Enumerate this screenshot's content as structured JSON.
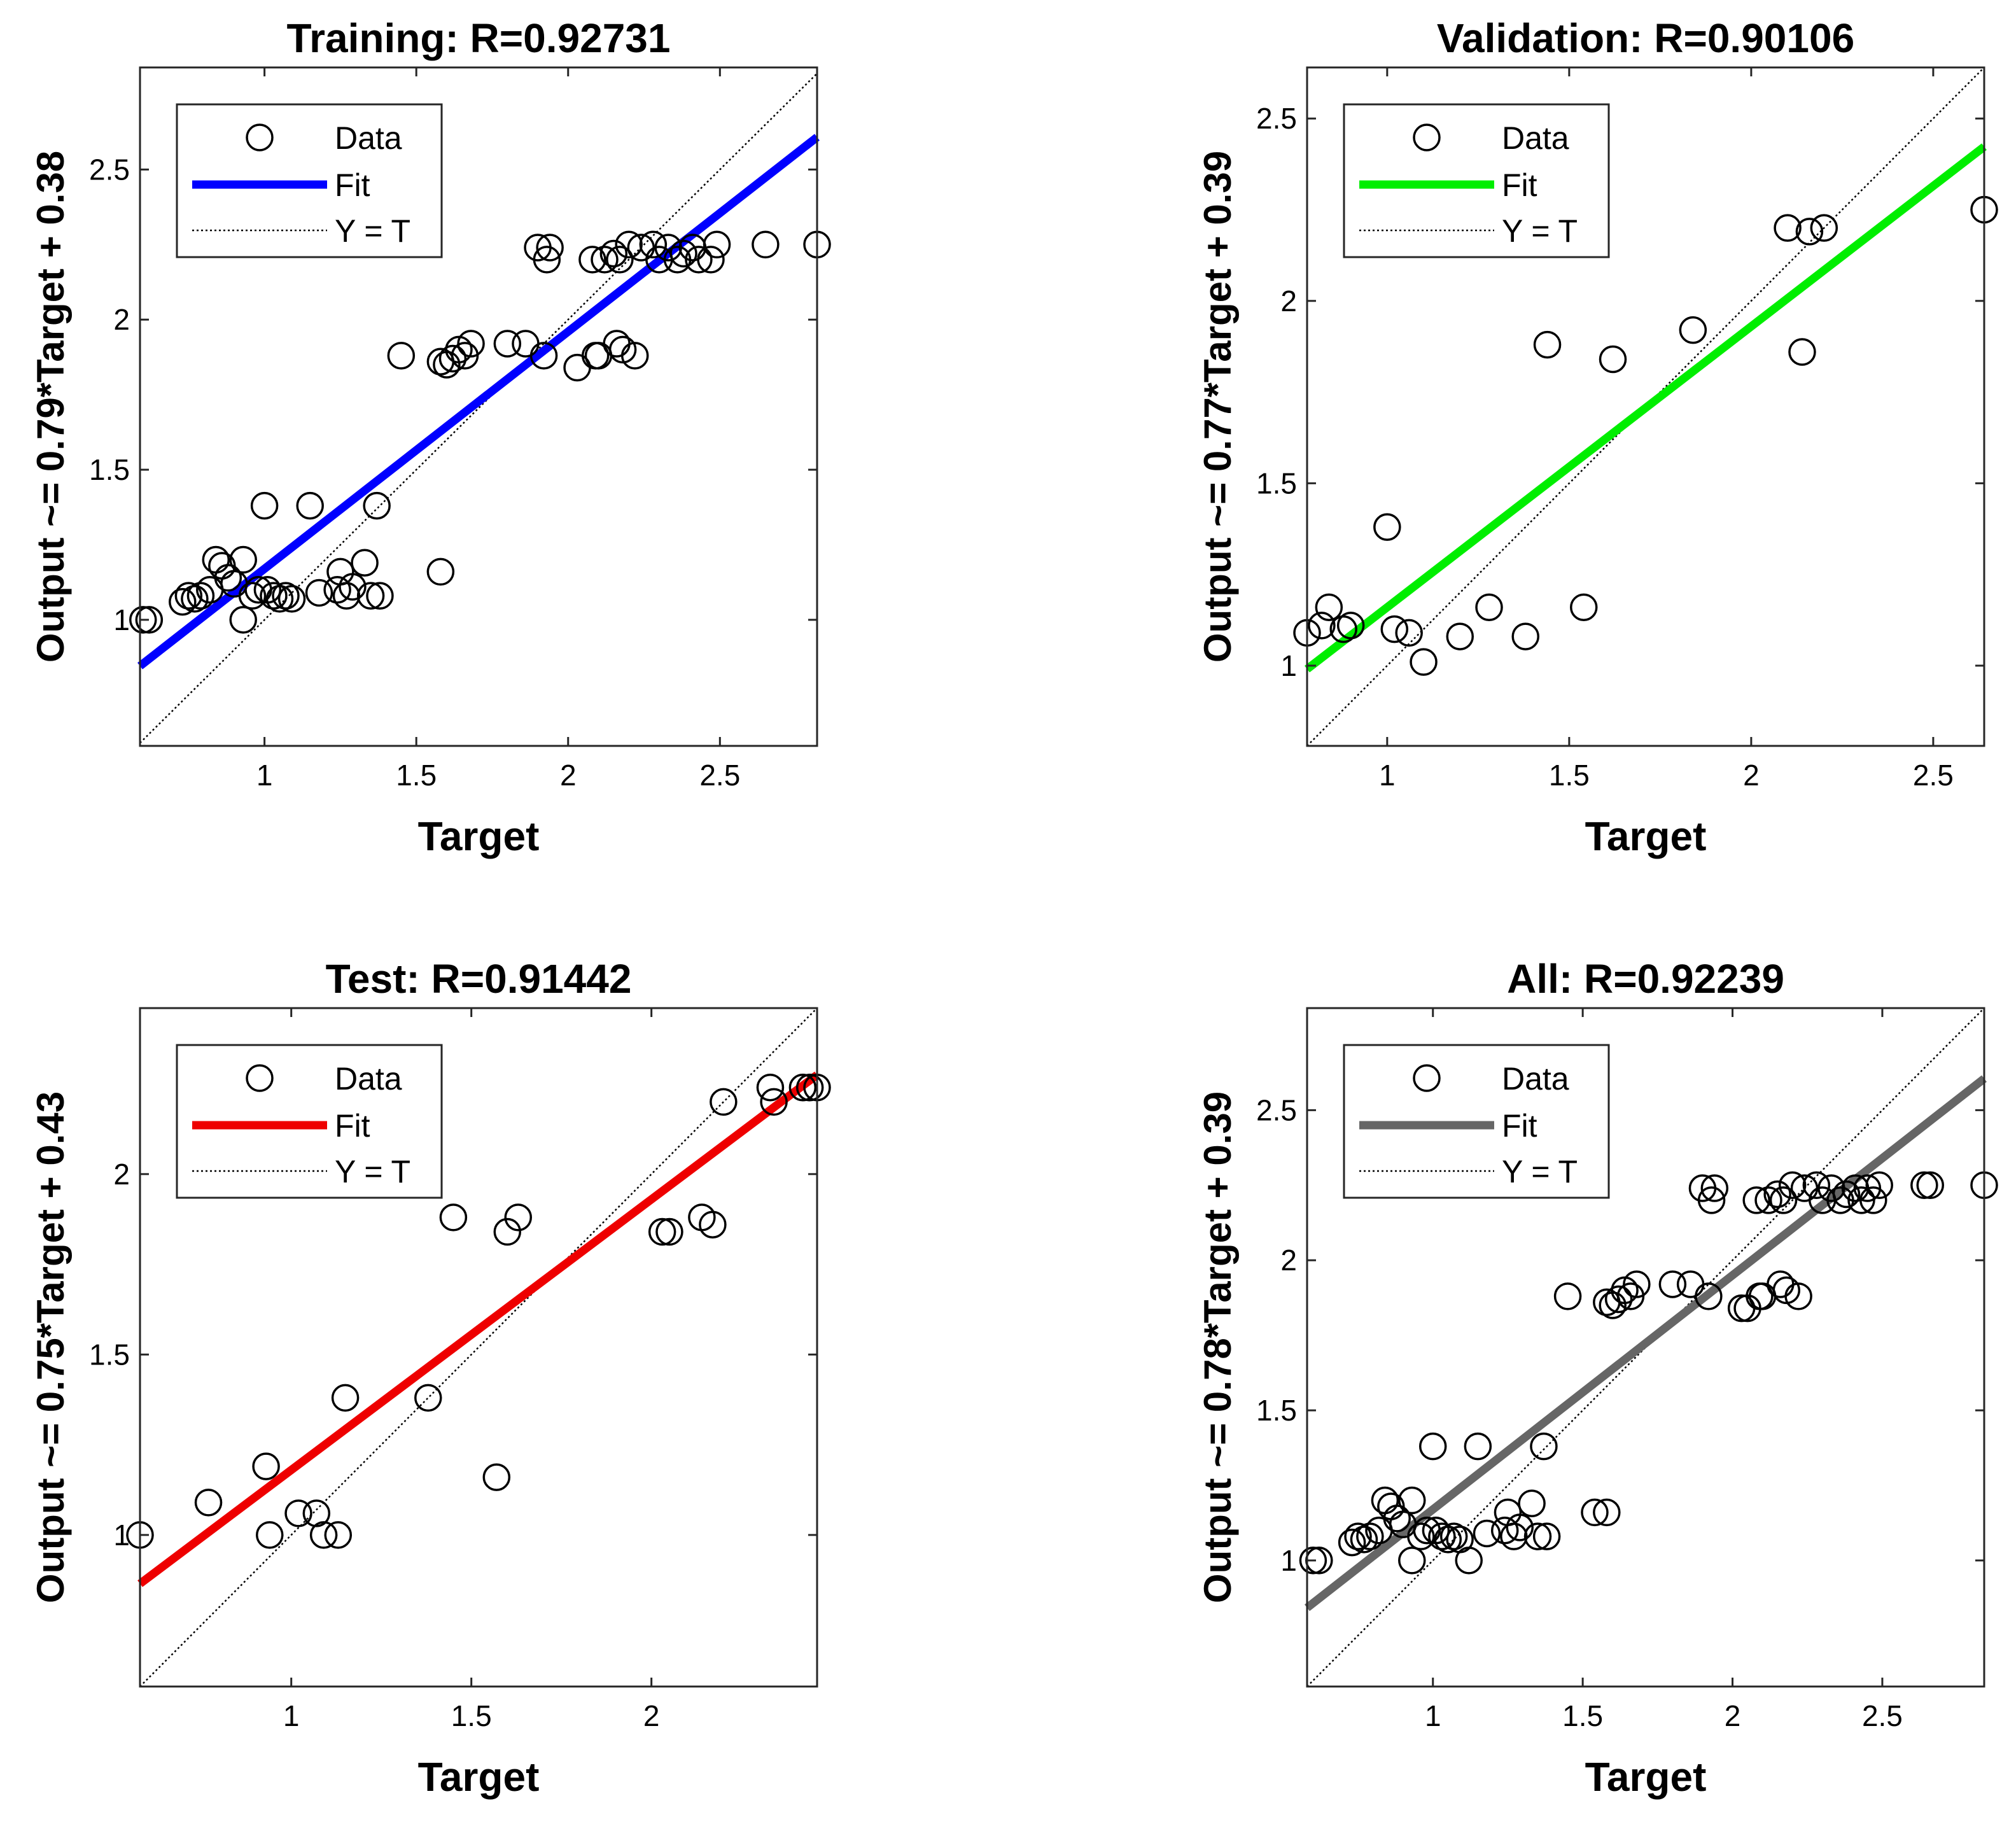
{
  "chart_data": [
    {
      "type": "scatter",
      "panel": "training",
      "title": "Training: R=0.92731",
      "xlabel": "Target",
      "ylabel": "Output ~= 0.79*Target + 0.38",
      "xlim": [
        0.59,
        2.82
      ],
      "ylim": [
        0.58,
        2.84
      ],
      "xticks": [
        1,
        1.5,
        2,
        2.5
      ],
      "xtick_labels": [
        "1",
        "1.5",
        "2",
        "2.5"
      ],
      "yticks": [
        1,
        1.5,
        2,
        2.5
      ],
      "ytick_labels": [
        "1",
        "1.5",
        "2",
        "2.5"
      ],
      "fit": {
        "slope": 0.79,
        "intercept": 0.38,
        "color": "#0000ff"
      },
      "legend": {
        "position": "top-left",
        "entries": [
          "Data",
          "Fit",
          "Y = T"
        ]
      },
      "points": [
        [
          0.6,
          1.0
        ],
        [
          0.62,
          1.0
        ],
        [
          0.73,
          1.06
        ],
        [
          0.75,
          1.08
        ],
        [
          0.77,
          1.07
        ],
        [
          0.79,
          1.08
        ],
        [
          0.82,
          1.1
        ],
        [
          0.84,
          1.2
        ],
        [
          0.86,
          1.18
        ],
        [
          0.88,
          1.14
        ],
        [
          0.9,
          1.12
        ],
        [
          0.93,
          1.2
        ],
        [
          0.93,
          1.0
        ],
        [
          0.96,
          1.08
        ],
        [
          0.98,
          1.1
        ],
        [
          1.0,
          1.38
        ],
        [
          1.01,
          1.1
        ],
        [
          1.03,
          1.08
        ],
        [
          1.05,
          1.07
        ],
        [
          1.07,
          1.08
        ],
        [
          1.09,
          1.07
        ],
        [
          1.15,
          1.38
        ],
        [
          1.18,
          1.09
        ],
        [
          1.24,
          1.1
        ],
        [
          1.25,
          1.16
        ],
        [
          1.27,
          1.08
        ],
        [
          1.29,
          1.11
        ],
        [
          1.33,
          1.19
        ],
        [
          1.35,
          1.08
        ],
        [
          1.37,
          1.38
        ],
        [
          1.38,
          1.08
        ],
        [
          1.45,
          1.88
        ],
        [
          1.58,
          1.16
        ],
        [
          1.58,
          1.86
        ],
        [
          1.6,
          1.85
        ],
        [
          1.62,
          1.87
        ],
        [
          1.64,
          1.9
        ],
        [
          1.66,
          1.88
        ],
        [
          1.68,
          1.92
        ],
        [
          1.8,
          1.92
        ],
        [
          1.86,
          1.92
        ],
        [
          1.9,
          2.24
        ],
        [
          1.92,
          1.88
        ],
        [
          1.93,
          2.2
        ],
        [
          1.94,
          2.24
        ],
        [
          2.03,
          1.84
        ],
        [
          2.08,
          2.2
        ],
        [
          2.09,
          1.88
        ],
        [
          2.1,
          1.88
        ],
        [
          2.12,
          2.2
        ],
        [
          2.15,
          2.22
        ],
        [
          2.16,
          1.92
        ],
        [
          2.17,
          2.2
        ],
        [
          2.18,
          1.9
        ],
        [
          2.2,
          2.25
        ],
        [
          2.22,
          1.88
        ],
        [
          2.24,
          2.24
        ],
        [
          2.28,
          2.25
        ],
        [
          2.3,
          2.2
        ],
        [
          2.33,
          2.24
        ],
        [
          2.36,
          2.2
        ],
        [
          2.38,
          2.22
        ],
        [
          2.41,
          2.24
        ],
        [
          2.43,
          2.2
        ],
        [
          2.47,
          2.2
        ],
        [
          2.49,
          2.25
        ],
        [
          2.65,
          2.25
        ],
        [
          2.82,
          2.25
        ]
      ]
    },
    {
      "type": "scatter",
      "panel": "validation",
      "title": "Validation: R=0.90106",
      "xlabel": "Target",
      "ylabel": "Output ~= 0.77*Target + 0.39",
      "xlim": [
        0.78,
        2.64
      ],
      "ylim": [
        0.78,
        2.64
      ],
      "xticks": [
        1,
        1.5,
        2,
        2.5
      ],
      "xtick_labels": [
        "1",
        "1.5",
        "2",
        "2.5"
      ],
      "yticks": [
        1,
        1.5,
        2,
        2.5
      ],
      "ytick_labels": [
        "1",
        "1.5",
        "2",
        "2.5"
      ],
      "fit": {
        "slope": 0.77,
        "intercept": 0.39,
        "color": "#00ee00"
      },
      "legend": {
        "position": "top-left",
        "entries": [
          "Data",
          "Fit",
          "Y = T"
        ]
      },
      "points": [
        [
          0.78,
          1.09
        ],
        [
          0.82,
          1.11
        ],
        [
          0.84,
          1.16
        ],
        [
          0.88,
          1.1
        ],
        [
          0.9,
          1.11
        ],
        [
          1.0,
          1.38
        ],
        [
          1.02,
          1.1
        ],
        [
          1.06,
          1.09
        ],
        [
          1.1,
          1.01
        ],
        [
          1.2,
          1.08
        ],
        [
          1.28,
          1.16
        ],
        [
          1.38,
          1.08
        ],
        [
          1.44,
          1.88
        ],
        [
          1.54,
          1.16
        ],
        [
          1.62,
          1.84
        ],
        [
          1.84,
          1.92
        ],
        [
          2.1,
          2.2
        ],
        [
          2.14,
          1.86
        ],
        [
          2.16,
          2.19
        ],
        [
          2.2,
          2.2
        ],
        [
          2.64,
          2.25
        ]
      ]
    },
    {
      "type": "scatter",
      "panel": "test",
      "title": "Test: R=0.91442",
      "xlabel": "Target",
      "ylabel": "Output ~= 0.75*Target + 0.43",
      "xlim": [
        0.58,
        2.46
      ],
      "ylim": [
        0.58,
        2.46
      ],
      "xticks": [
        1,
        1.5,
        2
      ],
      "xtick_labels": [
        "1",
        "1.5",
        "2"
      ],
      "yticks": [
        1,
        1.5,
        2
      ],
      "ytick_labels": [
        "1",
        "1.5",
        "2"
      ],
      "fit": {
        "slope": 0.75,
        "intercept": 0.43,
        "color": "#ee0000"
      },
      "legend": {
        "position": "top-left",
        "entries": [
          "Data",
          "Fit",
          "Y = T"
        ]
      },
      "points": [
        [
          0.58,
          1.0
        ],
        [
          0.77,
          1.09
        ],
        [
          0.93,
          1.19
        ],
        [
          0.94,
          1.0
        ],
        [
          1.02,
          1.06
        ],
        [
          1.07,
          1.06
        ],
        [
          1.09,
          1.0
        ],
        [
          1.13,
          1.0
        ],
        [
          1.15,
          1.38
        ],
        [
          1.38,
          1.38
        ],
        [
          1.45,
          1.88
        ],
        [
          1.57,
          1.16
        ],
        [
          1.6,
          1.84
        ],
        [
          1.63,
          1.88
        ],
        [
          2.03,
          1.84
        ],
        [
          2.05,
          1.84
        ],
        [
          2.14,
          1.88
        ],
        [
          2.17,
          1.86
        ],
        [
          2.2,
          2.2
        ],
        [
          2.33,
          2.24
        ],
        [
          2.34,
          2.2
        ],
        [
          2.42,
          2.24
        ],
        [
          2.44,
          2.24
        ],
        [
          2.46,
          2.24
        ]
      ]
    },
    {
      "type": "scatter",
      "panel": "all",
      "title": "All: R=0.92239",
      "xlabel": "Target",
      "ylabel": "Output ~= 0.78*Target + 0.39",
      "xlim": [
        0.58,
        2.84
      ],
      "ylim": [
        0.58,
        2.84
      ],
      "xticks": [
        1,
        1.5,
        2,
        2.5
      ],
      "xtick_labels": [
        "1",
        "1.5",
        "2",
        "2.5"
      ],
      "yticks": [
        1,
        1.5,
        2,
        2.5
      ],
      "ytick_labels": [
        "1",
        "1.5",
        "2",
        "2.5"
      ],
      "fit": {
        "slope": 0.78,
        "intercept": 0.39,
        "color": "#666666"
      },
      "legend": {
        "position": "top-left",
        "entries": [
          "Data",
          "Fit",
          "Y = T"
        ]
      },
      "points": [
        [
          0.6,
          1.0
        ],
        [
          0.62,
          1.0
        ],
        [
          0.73,
          1.06
        ],
        [
          0.75,
          1.08
        ],
        [
          0.77,
          1.07
        ],
        [
          0.79,
          1.08
        ],
        [
          0.82,
          1.1
        ],
        [
          0.84,
          1.2
        ],
        [
          0.86,
          1.18
        ],
        [
          0.88,
          1.14
        ],
        [
          0.9,
          1.12
        ],
        [
          0.93,
          1.2
        ],
        [
          0.93,
          1.0
        ],
        [
          0.96,
          1.08
        ],
        [
          0.98,
          1.1
        ],
        [
          1.0,
          1.38
        ],
        [
          1.01,
          1.1
        ],
        [
          1.03,
          1.08
        ],
        [
          1.05,
          1.07
        ],
        [
          1.07,
          1.08
        ],
        [
          1.09,
          1.07
        ],
        [
          1.12,
          1.0
        ],
        [
          1.15,
          1.38
        ],
        [
          1.18,
          1.09
        ],
        [
          1.24,
          1.1
        ],
        [
          1.25,
          1.16
        ],
        [
          1.27,
          1.08
        ],
        [
          1.29,
          1.11
        ],
        [
          1.33,
          1.19
        ],
        [
          1.35,
          1.08
        ],
        [
          1.37,
          1.38
        ],
        [
          1.38,
          1.08
        ],
        [
          1.45,
          1.88
        ],
        [
          1.54,
          1.16
        ],
        [
          1.58,
          1.16
        ],
        [
          1.58,
          1.86
        ],
        [
          1.6,
          1.85
        ],
        [
          1.62,
          1.87
        ],
        [
          1.64,
          1.9
        ],
        [
          1.66,
          1.88
        ],
        [
          1.68,
          1.92
        ],
        [
          1.8,
          1.92
        ],
        [
          1.86,
          1.92
        ],
        [
          1.9,
          2.24
        ],
        [
          1.92,
          1.88
        ],
        [
          1.93,
          2.2
        ],
        [
          1.94,
          2.24
        ],
        [
          2.03,
          1.84
        ],
        [
          2.05,
          1.84
        ],
        [
          2.08,
          2.2
        ],
        [
          2.09,
          1.88
        ],
        [
          2.1,
          1.88
        ],
        [
          2.12,
          2.2
        ],
        [
          2.15,
          2.22
        ],
        [
          2.16,
          1.92
        ],
        [
          2.17,
          2.2
        ],
        [
          2.18,
          1.9
        ],
        [
          2.2,
          2.25
        ],
        [
          2.22,
          1.88
        ],
        [
          2.24,
          2.24
        ],
        [
          2.28,
          2.25
        ],
        [
          2.3,
          2.2
        ],
        [
          2.33,
          2.24
        ],
        [
          2.36,
          2.2
        ],
        [
          2.38,
          2.22
        ],
        [
          2.41,
          2.24
        ],
        [
          2.43,
          2.2
        ],
        [
          2.45,
          2.24
        ],
        [
          2.47,
          2.2
        ],
        [
          2.49,
          2.25
        ],
        [
          2.64,
          2.25
        ],
        [
          2.66,
          2.25
        ],
        [
          2.84,
          2.25
        ]
      ]
    }
  ]
}
